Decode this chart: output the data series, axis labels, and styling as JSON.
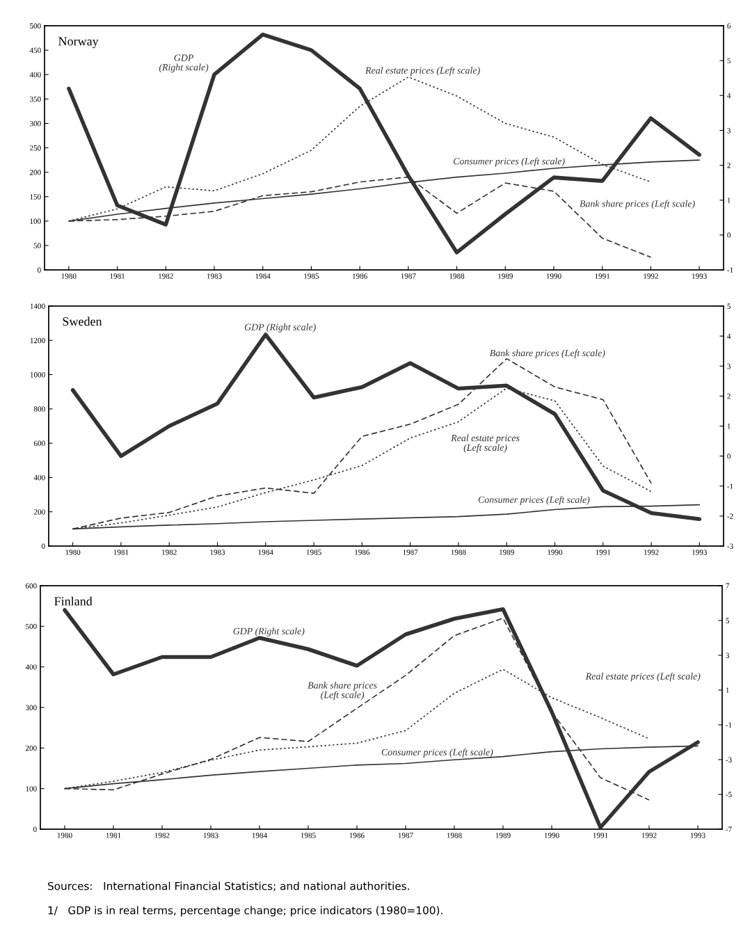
{
  "chart_data": [
    {
      "type": "line",
      "title": "Norway",
      "x": [
        1980,
        1981,
        1982,
        1983,
        1984,
        1985,
        1986,
        1987,
        1988,
        1989,
        1990,
        1991,
        1992,
        1993
      ],
      "xlim": [
        1979.5,
        1993.5
      ],
      "xticks": [
        1980,
        1981,
        1982,
        1983,
        1984,
        1985,
        1986,
        1987,
        1988,
        1989,
        1990,
        1991,
        1992,
        1993
      ],
      "ylim": [
        0,
        500
      ],
      "yticks": [
        0,
        50,
        100,
        150,
        200,
        250,
        300,
        350,
        400,
        450,
        500
      ],
      "y2lim": [
        -1,
        6
      ],
      "y2ticks": [
        -1,
        0,
        1,
        2,
        3,
        4,
        5,
        6
      ],
      "grid": false,
      "legend": false,
      "marker": "none",
      "series": [
        {
          "name": "GDP\n(Right scale)",
          "color": "#333333",
          "axis": "y2",
          "line_style": "solid",
          "values": [
            4.2,
            0.85,
            0.3,
            4.6,
            5.75,
            5.3,
            4.2,
            1.7,
            -0.5,
            0.6,
            1.65,
            1.55,
            3.35,
            2.3
          ]
        },
        {
          "name": "Real estate prices (Left scale)",
          "color": "#333333",
          "line_style": "dotted",
          "values": [
            100,
            125,
            170,
            162,
            197,
            245,
            335,
            395,
            356,
            300,
            272,
            216,
            180,
            null
          ]
        },
        {
          "name": "Consumer prices (Left scale)",
          "color": "#333333",
          "line_style": "solid",
          "values": [
            100,
            114,
            126,
            137,
            146,
            155,
            166,
            179,
            190,
            198,
            208,
            215,
            221,
            225
          ]
        },
        {
          "name": "Bank share prices (Left scale)",
          "color": "#333333",
          "line_style": "dashed",
          "values": [
            100,
            103,
            110,
            120,
            152,
            160,
            180,
            190,
            116,
            178,
            161,
            65,
            26,
            null
          ]
        }
      ]
    },
    {
      "type": "line",
      "title": "Sweden",
      "x": [
        1980,
        1981,
        1982,
        1983,
        1984,
        1985,
        1986,
        1987,
        1988,
        1989,
        1990,
        1991,
        1992,
        1993
      ],
      "xlim": [
        1979.5,
        1993.5
      ],
      "xticks": [
        1980,
        1981,
        1982,
        1983,
        1984,
        1985,
        1986,
        1987,
        1988,
        1989,
        1990,
        1991,
        1992,
        1993
      ],
      "ylim": [
        0,
        1400
      ],
      "yticks": [
        0,
        200,
        400,
        600,
        800,
        1000,
        1200,
        1400
      ],
      "y2lim": [
        -3,
        5
      ],
      "y2ticks": [
        -3,
        -2,
        -1,
        0,
        1,
        2,
        3,
        4,
        5
      ],
      "grid": false,
      "legend": false,
      "marker": "none",
      "series": [
        {
          "name": "GDP (Right scale)",
          "color": "#333333",
          "axis": "y2",
          "line_style": "solid",
          "values": [
            2.2,
            0.0,
            1.0,
            1.75,
            4.05,
            1.95,
            2.3,
            3.1,
            2.25,
            2.35,
            1.4,
            -1.15,
            -1.9,
            -2.1
          ]
        },
        {
          "name": "Bank share prices (Left scale)",
          "color": "#333333",
          "line_style": "dashed",
          "values": [
            100,
            163,
            196,
            292,
            339,
            308,
            640,
            711,
            827,
            1093,
            928,
            854,
            366,
            null
          ]
        },
        {
          "name": "Real estate prices\n(Left scale)",
          "color": "#333333",
          "line_style": "dotted",
          "values": [
            100,
            135,
            180,
            228,
            312,
            386,
            470,
            630,
            725,
            921,
            847,
            467,
            318,
            null
          ]
        },
        {
          "name": "Consumer prices (Left scale)",
          "color": "#333333",
          "line_style": "solid",
          "values": [
            100,
            112,
            122,
            131,
            142,
            150,
            158,
            165,
            172,
            186,
            213,
            230,
            233,
            241
          ]
        }
      ]
    },
    {
      "type": "line",
      "title": "Finland",
      "x": [
        1980,
        1981,
        1982,
        1983,
        1984,
        1985,
        1986,
        1987,
        1988,
        1989,
        1990,
        1991,
        1992,
        1993
      ],
      "xlim": [
        1979.5,
        1993.5
      ],
      "xticks": [
        1980,
        1981,
        1982,
        1983,
        1984,
        1985,
        1986,
        1987,
        1988,
        1989,
        1990,
        1991,
        1992,
        1993
      ],
      "ylim": [
        0,
        600
      ],
      "yticks": [
        0,
        100,
        200,
        300,
        400,
        500,
        600
      ],
      "y2lim": [
        -7,
        7
      ],
      "y2ticks": [
        -7,
        -5,
        -3,
        -1,
        1,
        3,
        5,
        7
      ],
      "grid": false,
      "legend": false,
      "marker": "none",
      "series": [
        {
          "name": "GDP (Right scale)",
          "color": "#333333",
          "axis": "y2",
          "line_style": "solid",
          "values": [
            5.6,
            1.9,
            2.9,
            2.9,
            4.0,
            3.35,
            2.4,
            4.2,
            5.1,
            5.65,
            -0.25,
            -6.9,
            -3.7,
            -2.0
          ]
        },
        {
          "name": "Bank share prices\n(Left scale)",
          "color": "#333333",
          "line_style": "dashed",
          "values": [
            100,
            97,
            136,
            172,
            226,
            216,
            298,
            379,
            477,
            520,
            289,
            127,
            72,
            null
          ]
        },
        {
          "name": "Real estate prices (Left scale)",
          "color": "#333333",
          "line_style": "dotted",
          "values": [
            100,
            118,
            140,
            170,
            195,
            203,
            212,
            243,
            335,
            394,
            324,
            275,
            223,
            null
          ]
        },
        {
          "name": "Consumer prices (Left scale)",
          "color": "#333333",
          "line_style": "solid",
          "values": [
            100,
            112,
            122,
            133,
            142,
            150,
            158,
            162,
            171,
            179,
            191,
            198,
            202,
            205
          ]
        }
      ],
      "annotations": [
        "Sources:   International Financial Statistics; and national authorities.",
        "1/   GDP is in real terms, percentage change; price indicators (1980=100)."
      ]
    }
  ]
}
